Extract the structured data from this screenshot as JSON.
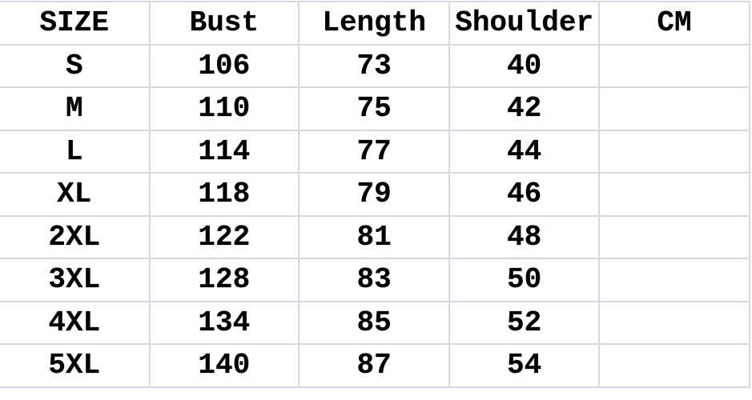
{
  "headers": [
    "SIZE",
    "Bust",
    "Length",
    "Shoulder",
    "CM"
  ],
  "rows": [
    [
      "S",
      "106",
      "73",
      "40",
      ""
    ],
    [
      "M",
      "110",
      "75",
      "42",
      ""
    ],
    [
      "L",
      "114",
      "77",
      "44",
      ""
    ],
    [
      "XL",
      "118",
      "79",
      "46",
      ""
    ],
    [
      "2XL",
      "122",
      "81",
      "48",
      ""
    ],
    [
      "3XL",
      "128",
      "83",
      "50",
      ""
    ],
    [
      "4XL",
      "134",
      "85",
      "52",
      ""
    ],
    [
      "5XL",
      "140",
      "87",
      "54",
      ""
    ]
  ]
}
